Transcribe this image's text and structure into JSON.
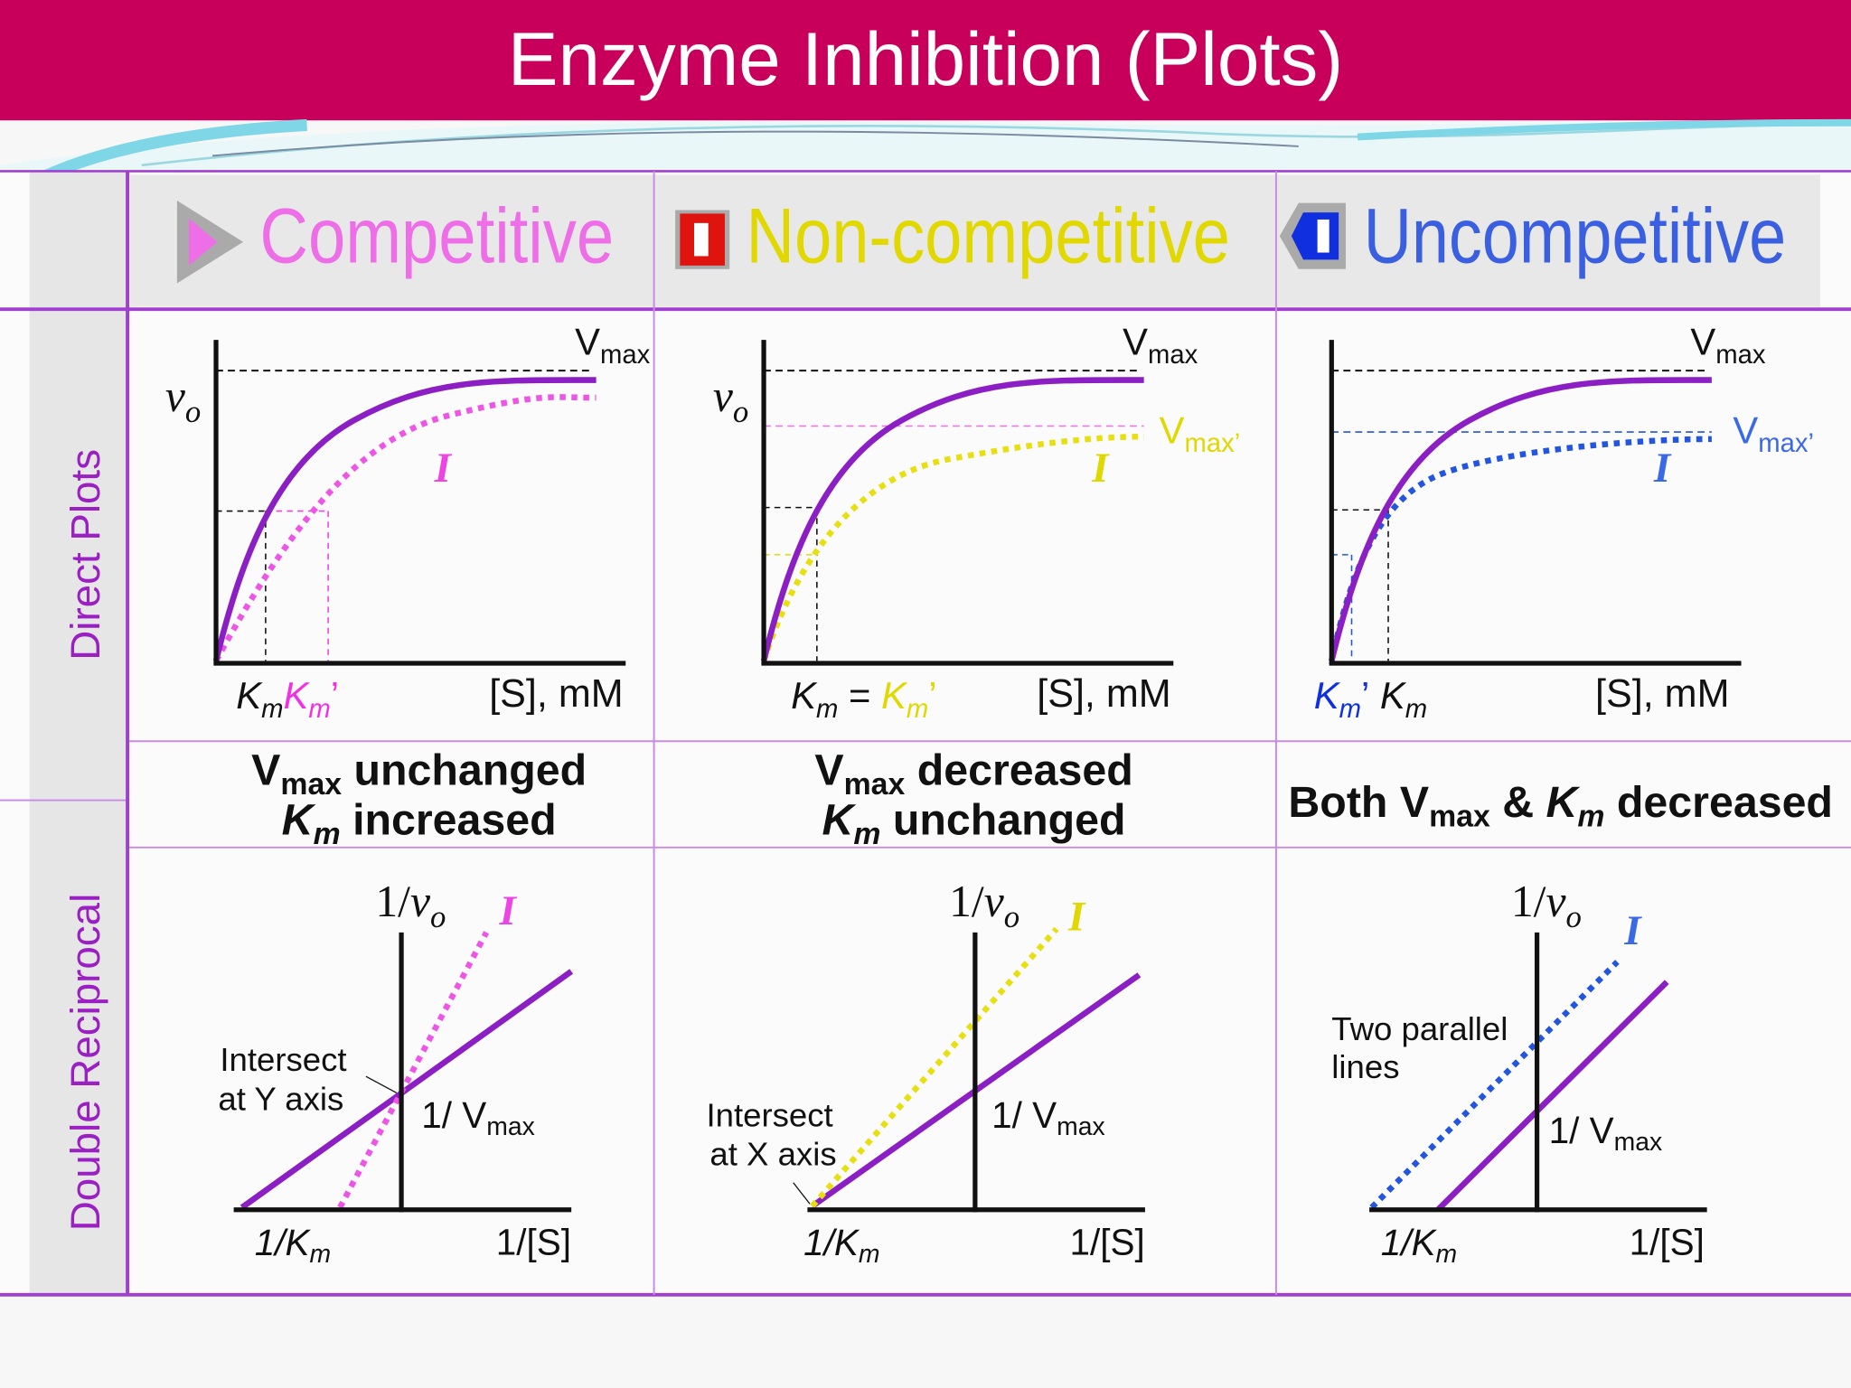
{
  "title": "Enzyme Inhibition (Plots)",
  "row_labels": [
    "Direct Plots",
    "Double Reciprocal"
  ],
  "columns": [
    {
      "name": "Competitive",
      "direct": {
        "y_axis": [
          "v",
          "o"
        ],
        "vmax": [
          "V",
          "max"
        ],
        "inhibitor": "I",
        "x_labels": [
          "K",
          "m",
          "K",
          "m",
          "’"
        ],
        "x_axis": "[S], mM"
      },
      "summary": [
        [
          "V",
          "max",
          " unchanged"
        ],
        [
          "K",
          "m",
          " increased"
        ]
      ],
      "reciprocal": {
        "y_axis": [
          "1/",
          "v",
          "o"
        ],
        "inhibitor": "I",
        "note": [
          "Intersect",
          "at Y axis"
        ],
        "vmax": [
          "1/ V",
          "max"
        ],
        "x_intercept": [
          "1/",
          "K",
          "m"
        ],
        "x_axis": "1/[S]"
      }
    },
    {
      "name": "Non-competitive",
      "direct": {
        "y_axis": [
          "v",
          "o"
        ],
        "vmax": [
          "V",
          "max"
        ],
        "vmax_prime": [
          "V",
          "max",
          "’"
        ],
        "inhibitor": "I",
        "x_labels": [
          "K",
          "m",
          " = ",
          "K",
          "m",
          "’"
        ],
        "x_axis": "[S], mM"
      },
      "summary": [
        [
          "V",
          "max",
          " decreased"
        ],
        [
          "K",
          "m",
          " unchanged"
        ]
      ],
      "reciprocal": {
        "y_axis": [
          "1/",
          "v",
          "o"
        ],
        "inhibitor": "I",
        "note": [
          "Intersect",
          "at X axis"
        ],
        "vmax": [
          "1/ V",
          "max"
        ],
        "x_intercept": [
          "1/",
          "K",
          "m"
        ],
        "x_axis": "1/[S]"
      }
    },
    {
      "name": "Uncompetitive",
      "direct": {
        "vmax": [
          "V",
          "max"
        ],
        "vmax_prime": [
          "V",
          "max",
          "’"
        ],
        "inhibitor": "I",
        "x_labels": [
          "K",
          "m",
          "’",
          " K",
          "m"
        ],
        "x_axis": "[S], mM"
      },
      "summary": [
        [
          "Both V",
          "max",
          " & ",
          "K",
          "m",
          " decreased"
        ]
      ],
      "reciprocal": {
        "y_axis": [
          "1/",
          "v",
          "o"
        ],
        "inhibitor": "I",
        "note": [
          "Two parallel",
          "lines"
        ],
        "vmax": [
          "1/ V",
          "max"
        ],
        "x_intercept": [
          "1/",
          "K",
          "m"
        ],
        "x_axis": "1/[S]"
      }
    }
  ]
}
